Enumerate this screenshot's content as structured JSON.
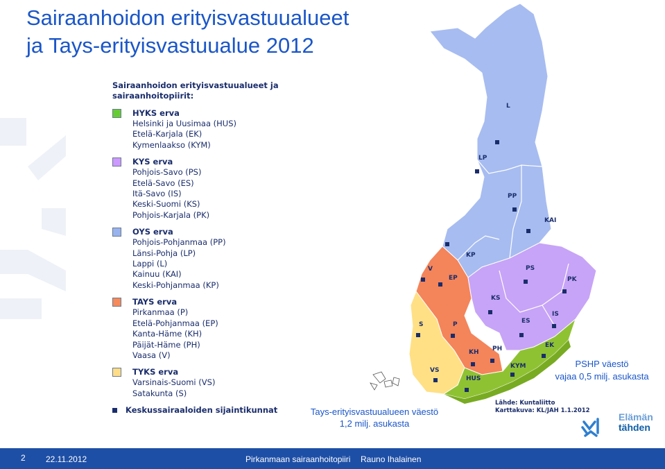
{
  "title": {
    "line1": "Sairaanhoidon erityisvastuualueet",
    "line2": "ja Tays-erityisvastuualue 2012"
  },
  "legend": {
    "heading_line1": "Sairaanhoidon erityisvastuualueet ja",
    "heading_line2": "sairaanhoitopiirit:",
    "groups": [
      {
        "title": "HYKS erva",
        "color": "#66cc33",
        "members": [
          "Helsinki ja Uusimaa (HUS)",
          "Etelä-Karjala (EK)",
          "Kymenlaakso (KYM)"
        ]
      },
      {
        "title": "KYS erva",
        "color": "#cc99ff",
        "members": [
          "Pohjois-Savo (PS)",
          "Etelä-Savo (ES)",
          "Itä-Savo (IS)",
          "Keski-Suomi (KS)",
          "Pohjois-Karjala (PK)"
        ]
      },
      {
        "title": "OYS erva",
        "color": "#99b3ee",
        "members": [
          "Pohjois-Pohjanmaa (PP)",
          "Länsi-Pohja (LP)",
          "Lappi (L)",
          "Kainuu (KAI)",
          "Keski-Pohjanmaa (KP)"
        ]
      },
      {
        "title": "TAYS erva",
        "color": "#f58a5a",
        "members": [
          "Pirkanmaa (P)",
          "Etelä-Pohjanmaa (EP)",
          "Kanta-Häme (KH)",
          "Päijät-Häme (PH)",
          "Vaasa (V)"
        ]
      },
      {
        "title": "TYKS erva",
        "color": "#ffdd88",
        "members": [
          "Varsinais-Suomi (VS)",
          "Satakunta (S)"
        ]
      }
    ],
    "centers_label": "Keskussairaaloiden sijaintikunnat"
  },
  "map": {
    "region_labels": [
      "L",
      "LP",
      "PP",
      "KAI",
      "KP",
      "V",
      "EP",
      "PS",
      "PK",
      "KS",
      "IS",
      "ES",
      "S",
      "P",
      "PH",
      "KH",
      "EK",
      "VS",
      "KYM",
      "HUS"
    ]
  },
  "annotations": {
    "pshp_line1": "PSHP väestö",
    "pshp_line2": "vajaa 0,5 milj. asukasta",
    "tays_line1": "Tays-erityisvastuualueen väestö",
    "tays_line2": "1,2 milj. asukasta"
  },
  "source": {
    "line1": "Lähde: Kuntaliitto",
    "line2": "Karttakuva: KL/JAH 1.1.2012"
  },
  "logo": {
    "line1": "Elämän",
    "line2": "tähden"
  },
  "footer": {
    "page_number": "2",
    "date": "22.11.2012",
    "organization": "Pirkanmaan sairaanhoitopiiri",
    "author": "Rauno Ihalainen",
    "color": "#1e4fa6"
  }
}
